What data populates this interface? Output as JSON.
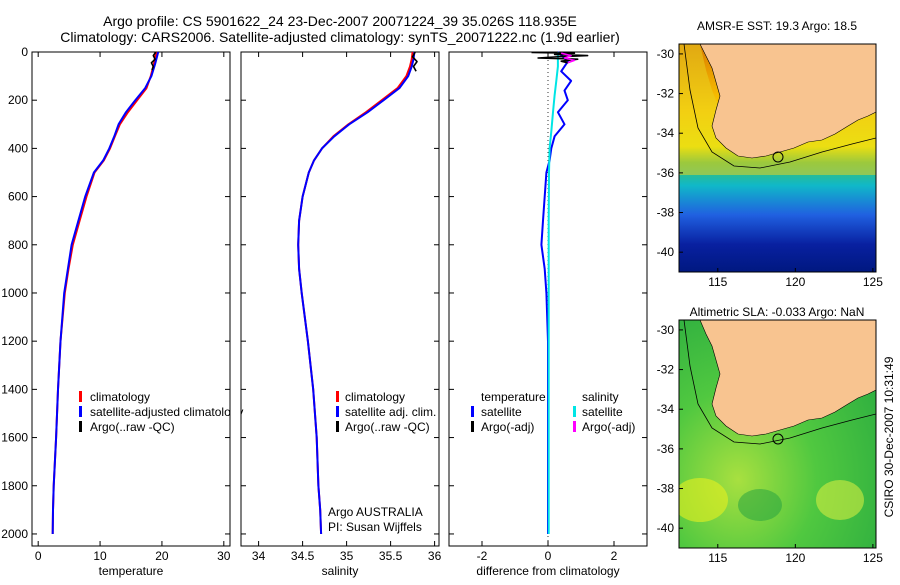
{
  "header": {
    "line1": "Argo profile: CS 5901622_24 23-Dec-2007 20071224_39 35.026S 118.935E",
    "line2": "Climatology: CARS2006. Satellite-adjusted climatology: synTS_20071222.nc (1.9d earlier)"
  },
  "chart_data": [
    {
      "type": "line",
      "id": "temperature",
      "xlabel": "temperature",
      "xlim": [
        -1,
        31
      ],
      "xticks": [
        "0",
        "10",
        "20",
        "30"
      ],
      "ylim": [
        2050,
        0
      ],
      "yticks": [
        "0",
        "200",
        "400",
        "600",
        "800",
        "1000",
        "1200",
        "1400",
        "1600",
        "1800",
        "2000"
      ],
      "legend": [
        "climatology",
        "satellite-adjusted climatology",
        "Argo(..raw -QC)"
      ],
      "series": [
        {
          "name": "climatology",
          "color": "#ff0000",
          "x": [
            19.1,
            18.9,
            18.7,
            18.2,
            17.5,
            16.0,
            14.5,
            13.2,
            12.4,
            11.6,
            10.6,
            9.1,
            7.8,
            6.7,
            5.6,
            4.9,
            4.3,
            3.6,
            3.2,
            2.9,
            2.7,
            2.5,
            2.4,
            2.35
          ],
          "y": [
            0,
            20,
            50,
            100,
            150,
            200,
            250,
            300,
            350,
            400,
            450,
            500,
            600,
            700,
            800,
            900,
            1000,
            1200,
            1400,
            1600,
            1700,
            1800,
            1900,
            2000
          ]
        },
        {
          "name": "satellite-adjusted climatology",
          "color": "#0000ff",
          "x": [
            19.4,
            19.2,
            18.9,
            18.3,
            17.3,
            15.7,
            14.2,
            13.0,
            12.3,
            11.5,
            10.5,
            9.0,
            7.6,
            6.5,
            5.4,
            4.8,
            4.2,
            3.6,
            3.2,
            2.9,
            2.7,
            2.5,
            2.4,
            2.35
          ],
          "y": [
            0,
            20,
            50,
            100,
            150,
            200,
            250,
            300,
            350,
            400,
            450,
            500,
            600,
            700,
            800,
            900,
            1000,
            1200,
            1400,
            1600,
            1700,
            1800,
            1900,
            2000
          ]
        },
        {
          "name": "Argo(..raw -QC)",
          "color": "#000000",
          "x": [
            19.0,
            18.6,
            18.9,
            18.3,
            18.6,
            18.4
          ],
          "y": [
            0,
            15,
            30,
            45,
            60,
            75
          ]
        }
      ]
    },
    {
      "type": "line",
      "id": "salinity",
      "xlabel": "salinity",
      "xlim": [
        33.8,
        36.05
      ],
      "xticks": [
        "34",
        "34.5",
        "35",
        "35.5",
        "36"
      ],
      "ylim": [
        2050,
        0
      ],
      "legend": [
        "climatology",
        "satellite adj. clim.",
        "Argo(..raw -QC)"
      ],
      "annotation": [
        "Argo AUSTRALIA",
        "PI: Susan Wijffels"
      ],
      "series": [
        {
          "name": "climatology",
          "color": "#ff0000",
          "x": [
            35.75,
            35.74,
            35.72,
            35.68,
            35.58,
            35.4,
            35.22,
            35.02,
            34.85,
            34.72,
            34.63,
            34.57,
            34.5,
            34.46,
            34.45,
            34.46,
            34.49,
            34.56,
            34.62,
            34.66,
            34.68,
            34.7,
            34.71
          ],
          "y": [
            0,
            30,
            60,
            100,
            150,
            200,
            250,
            300,
            350,
            400,
            450,
            500,
            600,
            700,
            800,
            900,
            1000,
            1200,
            1400,
            1600,
            1800,
            1900,
            2000
          ]
        },
        {
          "name": "satellite adj. clim.",
          "color": "#0000ff",
          "x": [
            35.77,
            35.76,
            35.74,
            35.7,
            35.6,
            35.42,
            35.24,
            35.03,
            34.86,
            34.72,
            34.63,
            34.57,
            34.5,
            34.46,
            34.45,
            34.46,
            34.49,
            34.56,
            34.62,
            34.66,
            34.68,
            34.7,
            34.71
          ],
          "y": [
            0,
            30,
            60,
            100,
            150,
            200,
            250,
            300,
            350,
            400,
            450,
            500,
            600,
            700,
            800,
            900,
            1000,
            1200,
            1400,
            1600,
            1800,
            1900,
            2000
          ]
        },
        {
          "name": "Argo(..raw -QC)",
          "color": "#000000",
          "x": [
            35.78,
            35.75,
            35.8,
            35.76,
            35.79
          ],
          "y": [
            0,
            20,
            40,
            60,
            80
          ]
        }
      ]
    },
    {
      "type": "line",
      "id": "difference",
      "xlabel": "difference from climatology",
      "xlim": [
        -3,
        3
      ],
      "xticks": [
        "-2",
        "0",
        "2"
      ],
      "ylim": [
        2050,
        0
      ],
      "legend_left_title": "temperature",
      "legend_right_title": "salinity",
      "legend_left": [
        "satellite",
        "Argo(-adj)"
      ],
      "legend_right": [
        "satellite",
        "Argo(-adj)"
      ],
      "series": [
        {
          "name": "temperature satellite",
          "color": "#0000ff",
          "x": [
            0.3,
            0.6,
            0.4,
            0.7,
            0.5,
            0.6,
            0.3,
            0.5,
            0.2,
            0.1,
            0.05,
            -0.05,
            -0.1,
            -0.15,
            -0.2,
            -0.1,
            -0.05,
            0,
            0,
            0,
            0
          ],
          "y": [
            0,
            40,
            80,
            120,
            160,
            200,
            250,
            300,
            350,
            400,
            450,
            500,
            600,
            700,
            800,
            900,
            1000,
            1200,
            1400,
            1700,
            2000
          ]
        },
        {
          "name": "salinity satellite",
          "color": "#00e5e5",
          "x": [
            0.3,
            0.3,
            0.25,
            0.2,
            0.15,
            0.1,
            0.05,
            0.03,
            0.02,
            0.02,
            0.02,
            0.02,
            0.02,
            0.02,
            0.02
          ],
          "y": [
            0,
            60,
            120,
            180,
            250,
            330,
            400,
            500,
            700,
            900,
            1100,
            1300,
            1500,
            1800,
            2000
          ]
        },
        {
          "name": "temperature Argo(-adj)",
          "color": "#000000",
          "x": [
            -0.5,
            0.8,
            0.2,
            1.2,
            0.3,
            -0.3,
            0.9,
            0.4,
            0.6
          ],
          "y": [
            2,
            5,
            10,
            15,
            20,
            25,
            30,
            38,
            45
          ]
        },
        {
          "name": "salinity Argo(-adj)",
          "color": "#ff00ff",
          "x": [
            0.4,
            0.7,
            0.5,
            0.8,
            0.6
          ],
          "y": [
            5,
            15,
            25,
            35,
            45
          ]
        }
      ]
    },
    {
      "type": "heatmap",
      "id": "sst-map",
      "title": "AMSR-E SST: 19.3 Argo: 18.5",
      "xlim": [
        112.5,
        125.2
      ],
      "ylim": [
        -41,
        -29.5
      ],
      "xticks": [
        "115",
        "120",
        "125"
      ],
      "yticks": [
        "-30",
        "-32",
        "-34",
        "-36",
        "-38",
        "-40"
      ],
      "float_position": {
        "lon": 118.935,
        "lat": -35.026
      }
    },
    {
      "type": "heatmap",
      "id": "sla-map",
      "title": "Altimetric SLA: -0.033 Argo: NaN",
      "xlim": [
        112.5,
        125.2
      ],
      "ylim": [
        -41,
        -29.5
      ],
      "xticks": [
        "115",
        "120",
        "125"
      ],
      "yticks": [
        "-30",
        "-32",
        "-34",
        "-36",
        "-38",
        "-40"
      ],
      "float_position": {
        "lon": 118.935,
        "lat": -35.026
      }
    }
  ],
  "side_stamp": "CSIRO 30-Dec-2007 10:31:49"
}
